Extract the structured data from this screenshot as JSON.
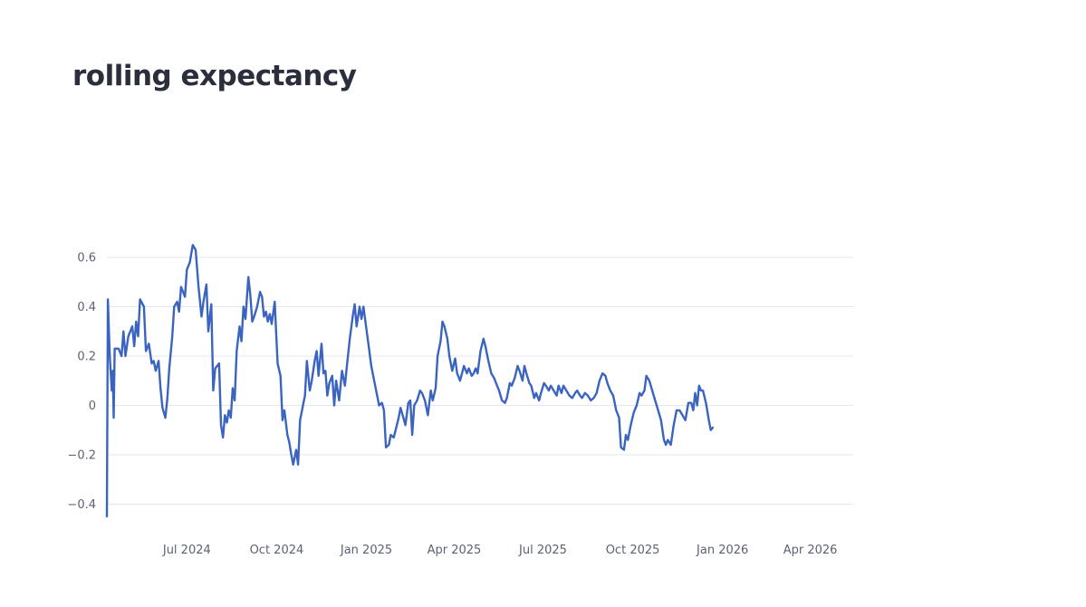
{
  "chart_data": {
    "type": "line",
    "title": "rolling expectancy",
    "xlabel": "",
    "ylabel": "",
    "x_range": [
      "2024-04-10",
      "2026-05-15"
    ],
    "ylim": [
      -0.45,
      0.67
    ],
    "y_ticks": [
      {
        "value": 0.6,
        "label": "0.6"
      },
      {
        "value": 0.4,
        "label": "0.4"
      },
      {
        "value": 0.2,
        "label": "0.2"
      },
      {
        "value": 0,
        "label": "0"
      },
      {
        "value": -0.2,
        "label": "−0.2"
      },
      {
        "value": -0.4,
        "label": "−0.4"
      }
    ],
    "x_ticks": [
      {
        "value": "2024-07-01",
        "label": "Jul 2024"
      },
      {
        "value": "2024-10-01",
        "label": "Oct 2024"
      },
      {
        "value": "2025-01-01",
        "label": "Jan 2025"
      },
      {
        "value": "2025-04-01",
        "label": "Apr 2025"
      },
      {
        "value": "2025-07-01",
        "label": "Jul 2025"
      },
      {
        "value": "2025-10-01",
        "label": "Oct 2025"
      },
      {
        "value": "2026-01-01",
        "label": "Jan 2026"
      },
      {
        "value": "2026-04-01",
        "label": "Apr 2026"
      }
    ],
    "grid": true,
    "legend": "none",
    "series": [
      {
        "color": "#3a64bf",
        "points": [
          [
            "2024-04-10",
            -0.45
          ],
          [
            "2024-04-11",
            0.43
          ],
          [
            "2024-04-13",
            0.2
          ],
          [
            "2024-04-15",
            0.06
          ],
          [
            "2024-04-16",
            0.14
          ],
          [
            "2024-04-17",
            -0.05
          ],
          [
            "2024-04-18",
            0.23
          ],
          [
            "2024-04-22",
            0.23
          ],
          [
            "2024-04-25",
            0.2
          ],
          [
            "2024-04-27",
            0.3
          ],
          [
            "2024-04-29",
            0.2
          ],
          [
            "2024-05-02",
            0.28
          ],
          [
            "2024-05-06",
            0.32
          ],
          [
            "2024-05-08",
            0.24
          ],
          [
            "2024-05-10",
            0.34
          ],
          [
            "2024-05-12",
            0.28
          ],
          [
            "2024-05-14",
            0.43
          ],
          [
            "2024-05-18",
            0.4
          ],
          [
            "2024-05-20",
            0.22
          ],
          [
            "2024-05-23",
            0.25
          ],
          [
            "2024-05-26",
            0.17
          ],
          [
            "2024-05-28",
            0.18
          ],
          [
            "2024-05-30",
            0.14
          ],
          [
            "2024-06-02",
            0.18
          ],
          [
            "2024-06-04",
            0.07
          ],
          [
            "2024-06-06",
            -0.01
          ],
          [
            "2024-06-09",
            -0.05
          ],
          [
            "2024-06-11",
            0.03
          ],
          [
            "2024-06-13",
            0.15
          ],
          [
            "2024-06-16",
            0.28
          ],
          [
            "2024-06-18",
            0.4
          ],
          [
            "2024-06-21",
            0.42
          ],
          [
            "2024-06-23",
            0.38
          ],
          [
            "2024-06-25",
            0.48
          ],
          [
            "2024-06-29",
            0.44
          ],
          [
            "2024-07-01",
            0.55
          ],
          [
            "2024-07-04",
            0.58
          ],
          [
            "2024-07-07",
            0.65
          ],
          [
            "2024-07-10",
            0.63
          ],
          [
            "2024-07-13",
            0.48
          ],
          [
            "2024-07-16",
            0.36
          ],
          [
            "2024-07-18",
            0.42
          ],
          [
            "2024-07-21",
            0.49
          ],
          [
            "2024-07-23",
            0.3
          ],
          [
            "2024-07-26",
            0.41
          ],
          [
            "2024-07-28",
            0.06
          ],
          [
            "2024-07-30",
            0.15
          ],
          [
            "2024-08-03",
            0.17
          ],
          [
            "2024-08-05",
            -0.08
          ],
          [
            "2024-08-07",
            -0.13
          ],
          [
            "2024-08-09",
            -0.04
          ],
          [
            "2024-08-11",
            -0.07
          ],
          [
            "2024-08-13",
            -0.02
          ],
          [
            "2024-08-15",
            -0.05
          ],
          [
            "2024-08-17",
            0.07
          ],
          [
            "2024-08-19",
            0.02
          ],
          [
            "2024-08-21",
            0.22
          ],
          [
            "2024-08-24",
            0.32
          ],
          [
            "2024-08-26",
            0.26
          ],
          [
            "2024-08-28",
            0.4
          ],
          [
            "2024-08-30",
            0.35
          ],
          [
            "2024-09-02",
            0.52
          ],
          [
            "2024-09-04",
            0.45
          ],
          [
            "2024-09-06",
            0.34
          ],
          [
            "2024-09-08",
            0.36
          ],
          [
            "2024-09-11",
            0.4
          ],
          [
            "2024-09-14",
            0.46
          ],
          [
            "2024-09-16",
            0.44
          ],
          [
            "2024-09-18",
            0.36
          ],
          [
            "2024-09-20",
            0.38
          ],
          [
            "2024-09-22",
            0.34
          ],
          [
            "2024-09-24",
            0.37
          ],
          [
            "2024-09-26",
            0.33
          ],
          [
            "2024-09-29",
            0.42
          ],
          [
            "2024-10-02",
            0.17
          ],
          [
            "2024-10-05",
            0.12
          ],
          [
            "2024-10-07",
            -0.06
          ],
          [
            "2024-10-09",
            -0.02
          ],
          [
            "2024-10-12",
            -0.12
          ],
          [
            "2024-10-14",
            -0.15
          ],
          [
            "2024-10-16",
            -0.2
          ],
          [
            "2024-10-18",
            -0.24
          ],
          [
            "2024-10-21",
            -0.18
          ],
          [
            "2024-10-23",
            -0.24
          ],
          [
            "2024-10-25",
            -0.06
          ],
          [
            "2024-10-28",
            0.0
          ],
          [
            "2024-10-30",
            0.04
          ],
          [
            "2024-11-01",
            0.18
          ],
          [
            "2024-11-04",
            0.06
          ],
          [
            "2024-11-06",
            0.1
          ],
          [
            "2024-11-09",
            0.18
          ],
          [
            "2024-11-11",
            0.22
          ],
          [
            "2024-11-13",
            0.12
          ],
          [
            "2024-11-16",
            0.25
          ],
          [
            "2024-11-18",
            0.13
          ],
          [
            "2024-11-20",
            0.14
          ],
          [
            "2024-11-22",
            0.04
          ],
          [
            "2024-11-24",
            0.09
          ],
          [
            "2024-11-27",
            0.12
          ],
          [
            "2024-11-29",
            0.0
          ],
          [
            "2024-12-01",
            0.1
          ],
          [
            "2024-12-04",
            0.02
          ],
          [
            "2024-12-07",
            0.14
          ],
          [
            "2024-12-10",
            0.08
          ],
          [
            "2024-12-12",
            0.16
          ],
          [
            "2024-12-15",
            0.27
          ],
          [
            "2024-12-18",
            0.36
          ],
          [
            "2024-12-20",
            0.41
          ],
          [
            "2024-12-22",
            0.32
          ],
          [
            "2024-12-25",
            0.4
          ],
          [
            "2024-12-27",
            0.35
          ],
          [
            "2024-12-29",
            0.4
          ],
          [
            "2025-01-01",
            0.31
          ],
          [
            "2025-01-03",
            0.25
          ],
          [
            "2025-01-06",
            0.16
          ],
          [
            "2025-01-09",
            0.1
          ],
          [
            "2025-01-12",
            0.04
          ],
          [
            "2025-01-14",
            0.0
          ],
          [
            "2025-01-17",
            0.01
          ],
          [
            "2025-01-19",
            -0.02
          ],
          [
            "2025-01-21",
            -0.17
          ],
          [
            "2025-01-24",
            -0.16
          ],
          [
            "2025-01-26",
            -0.12
          ],
          [
            "2025-01-29",
            -0.13
          ],
          [
            "2025-01-31",
            -0.1
          ],
          [
            "2025-02-03",
            -0.05
          ],
          [
            "2025-02-05",
            -0.01
          ],
          [
            "2025-02-08",
            -0.05
          ],
          [
            "2025-02-10",
            -0.08
          ],
          [
            "2025-02-13",
            0.01
          ],
          [
            "2025-02-15",
            0.02
          ],
          [
            "2025-02-17",
            -0.12
          ],
          [
            "2025-02-19",
            0.0
          ],
          [
            "2025-02-22",
            0.02
          ],
          [
            "2025-02-25",
            0.06
          ],
          [
            "2025-02-27",
            0.05
          ],
          [
            "2025-03-02",
            0.02
          ],
          [
            "2025-03-05",
            -0.04
          ],
          [
            "2025-03-08",
            0.06
          ],
          [
            "2025-03-10",
            0.02
          ],
          [
            "2025-03-13",
            0.07
          ],
          [
            "2025-03-15",
            0.2
          ],
          [
            "2025-03-18",
            0.26
          ],
          [
            "2025-03-20",
            0.34
          ],
          [
            "2025-03-22",
            0.32
          ],
          [
            "2025-03-25",
            0.27
          ],
          [
            "2025-03-27",
            0.2
          ],
          [
            "2025-03-30",
            0.14
          ],
          [
            "2025-04-02",
            0.19
          ],
          [
            "2025-04-04",
            0.13
          ],
          [
            "2025-04-07",
            0.1
          ],
          [
            "2025-04-09",
            0.13
          ],
          [
            "2025-04-11",
            0.16
          ],
          [
            "2025-04-14",
            0.13
          ],
          [
            "2025-04-16",
            0.15
          ],
          [
            "2025-04-19",
            0.12
          ],
          [
            "2025-04-21",
            0.13
          ],
          [
            "2025-04-23",
            0.15
          ],
          [
            "2025-04-25",
            0.13
          ],
          [
            "2025-04-28",
            0.22
          ],
          [
            "2025-05-01",
            0.27
          ],
          [
            "2025-05-03",
            0.24
          ],
          [
            "2025-05-06",
            0.18
          ],
          [
            "2025-05-09",
            0.13
          ],
          [
            "2025-05-12",
            0.11
          ],
          [
            "2025-05-15",
            0.08
          ],
          [
            "2025-05-17",
            0.06
          ],
          [
            "2025-05-20",
            0.02
          ],
          [
            "2025-05-23",
            0.01
          ],
          [
            "2025-05-25",
            0.03
          ],
          [
            "2025-05-28",
            0.09
          ],
          [
            "2025-05-30",
            0.08
          ],
          [
            "2025-06-02",
            0.11
          ],
          [
            "2025-06-05",
            0.16
          ],
          [
            "2025-06-07",
            0.14
          ],
          [
            "2025-06-10",
            0.1
          ],
          [
            "2025-06-12",
            0.16
          ],
          [
            "2025-06-14",
            0.13
          ],
          [
            "2025-06-17",
            0.09
          ],
          [
            "2025-06-19",
            0.08
          ],
          [
            "2025-06-22",
            0.03
          ],
          [
            "2025-06-24",
            0.05
          ],
          [
            "2025-06-27",
            0.02
          ],
          [
            "2025-06-29",
            0.05
          ],
          [
            "2025-07-02",
            0.09
          ],
          [
            "2025-07-04",
            0.08
          ],
          [
            "2025-07-07",
            0.06
          ],
          [
            "2025-07-09",
            0.08
          ],
          [
            "2025-07-12",
            0.06
          ],
          [
            "2025-07-15",
            0.04
          ],
          [
            "2025-07-17",
            0.08
          ],
          [
            "2025-07-20",
            0.05
          ],
          [
            "2025-07-22",
            0.08
          ],
          [
            "2025-07-25",
            0.06
          ],
          [
            "2025-07-28",
            0.04
          ],
          [
            "2025-07-31",
            0.03
          ],
          [
            "2025-08-03",
            0.05
          ],
          [
            "2025-08-05",
            0.06
          ],
          [
            "2025-08-08",
            0.04
          ],
          [
            "2025-08-10",
            0.03
          ],
          [
            "2025-08-13",
            0.05
          ],
          [
            "2025-08-16",
            0.04
          ],
          [
            "2025-08-19",
            0.02
          ],
          [
            "2025-08-22",
            0.03
          ],
          [
            "2025-08-25",
            0.05
          ],
          [
            "2025-08-28",
            0.1
          ],
          [
            "2025-08-31",
            0.13
          ],
          [
            "2025-09-03",
            0.12
          ],
          [
            "2025-09-05",
            0.09
          ],
          [
            "2025-09-08",
            0.06
          ],
          [
            "2025-09-11",
            0.04
          ],
          [
            "2025-09-14",
            -0.02
          ],
          [
            "2025-09-17",
            -0.05
          ],
          [
            "2025-09-19",
            -0.17
          ],
          [
            "2025-09-22",
            -0.18
          ],
          [
            "2025-09-24",
            -0.12
          ],
          [
            "2025-09-26",
            -0.14
          ],
          [
            "2025-09-29",
            -0.08
          ],
          [
            "2025-10-02",
            -0.03
          ],
          [
            "2025-10-05",
            0.0
          ],
          [
            "2025-10-08",
            0.05
          ],
          [
            "2025-10-10",
            0.04
          ],
          [
            "2025-10-13",
            0.06
          ],
          [
            "2025-10-15",
            0.12
          ],
          [
            "2025-10-18",
            0.1
          ],
          [
            "2025-10-21",
            0.06
          ],
          [
            "2025-10-24",
            0.02
          ],
          [
            "2025-10-27",
            -0.02
          ],
          [
            "2025-10-30",
            -0.06
          ],
          [
            "2025-11-02",
            -0.14
          ],
          [
            "2025-11-04",
            -0.16
          ],
          [
            "2025-11-06",
            -0.14
          ],
          [
            "2025-11-09",
            -0.16
          ],
          [
            "2025-11-12",
            -0.08
          ],
          [
            "2025-11-15",
            -0.02
          ],
          [
            "2025-11-18",
            -0.02
          ],
          [
            "2025-11-21",
            -0.04
          ],
          [
            "2025-11-24",
            -0.06
          ],
          [
            "2025-11-27",
            0.01
          ],
          [
            "2025-11-30",
            0.01
          ],
          [
            "2025-12-02",
            -0.02
          ],
          [
            "2025-12-04",
            0.05
          ],
          [
            "2025-12-06",
            0.0
          ],
          [
            "2025-12-08",
            0.08
          ],
          [
            "2025-12-10",
            0.06
          ],
          [
            "2025-12-12",
            0.06
          ],
          [
            "2025-12-15",
            0.01
          ],
          [
            "2025-12-18",
            -0.06
          ],
          [
            "2025-12-20",
            -0.1
          ],
          [
            "2025-12-22",
            -0.09
          ]
        ]
      }
    ]
  }
}
